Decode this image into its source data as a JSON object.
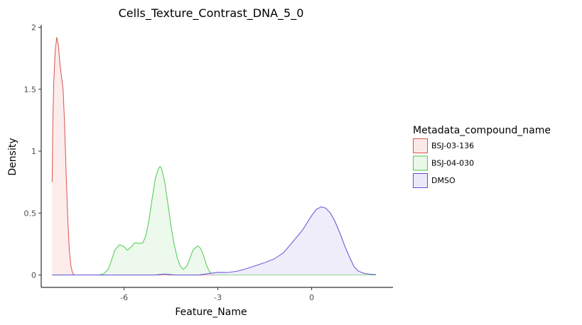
{
  "chart_data": {
    "type": "area",
    "title": "Cells_Texture_Contrast_DNA_5_0",
    "xlabel": "Feature_Name",
    "ylabel": "Density",
    "xlim": [
      -8.65,
      2.6
    ],
    "ylim": [
      -0.1,
      2.02
    ],
    "x_ticks": [
      -6,
      -3,
      0
    ],
    "x_tick_labels": [
      "-6",
      "-3",
      "0"
    ],
    "y_ticks": [
      0,
      0.5,
      1,
      1.5,
      2
    ],
    "y_tick_labels": [
      "0",
      "0.5",
      "1",
      "1.5",
      "2"
    ],
    "grid": false,
    "legend": {
      "title": "Metadata_compound_name",
      "position": "right",
      "entries": [
        "BSJ-03-136",
        "BSJ-04-030",
        "DMSO"
      ]
    },
    "series": [
      {
        "name": "BSJ-03-136",
        "line_color": "#d9534f",
        "fill_color": "#fbe9e8",
        "points": [
          [
            -8.3,
            0.75
          ],
          [
            -8.28,
            1.2
          ],
          [
            -8.25,
            1.55
          ],
          [
            -8.2,
            1.82
          ],
          [
            -8.15,
            1.92
          ],
          [
            -8.1,
            1.85
          ],
          [
            -8.05,
            1.7
          ],
          [
            -8.0,
            1.6
          ],
          [
            -7.95,
            1.5
          ],
          [
            -7.9,
            1.2
          ],
          [
            -7.85,
            0.8
          ],
          [
            -7.8,
            0.45
          ],
          [
            -7.75,
            0.2
          ],
          [
            -7.7,
            0.07
          ],
          [
            -7.65,
            0.02
          ],
          [
            -7.6,
            0.0
          ],
          [
            -7.4,
            0.0
          ],
          [
            2.05,
            0.0
          ]
        ]
      },
      {
        "name": "BSJ-04-030",
        "line_color": "#4ec94e",
        "fill_color": "#eaf8ea",
        "points": [
          [
            -8.3,
            0.0
          ],
          [
            -6.8,
            0.0
          ],
          [
            -6.65,
            0.01
          ],
          [
            -6.5,
            0.05
          ],
          [
            -6.4,
            0.12
          ],
          [
            -6.3,
            0.2
          ],
          [
            -6.15,
            0.245
          ],
          [
            -6.0,
            0.23
          ],
          [
            -5.9,
            0.2
          ],
          [
            -5.8,
            0.22
          ],
          [
            -5.65,
            0.26
          ],
          [
            -5.5,
            0.255
          ],
          [
            -5.4,
            0.26
          ],
          [
            -5.3,
            0.32
          ],
          [
            -5.2,
            0.45
          ],
          [
            -5.1,
            0.62
          ],
          [
            -5.0,
            0.78
          ],
          [
            -4.9,
            0.86
          ],
          [
            -4.85,
            0.875
          ],
          [
            -4.8,
            0.86
          ],
          [
            -4.7,
            0.75
          ],
          [
            -4.6,
            0.58
          ],
          [
            -4.5,
            0.4
          ],
          [
            -4.4,
            0.25
          ],
          [
            -4.3,
            0.14
          ],
          [
            -4.2,
            0.07
          ],
          [
            -4.1,
            0.045
          ],
          [
            -4.0,
            0.07
          ],
          [
            -3.9,
            0.13
          ],
          [
            -3.8,
            0.2
          ],
          [
            -3.65,
            0.235
          ],
          [
            -3.55,
            0.215
          ],
          [
            -3.45,
            0.15
          ],
          [
            -3.35,
            0.07
          ],
          [
            -3.25,
            0.02
          ],
          [
            -3.1,
            0.0
          ],
          [
            2.05,
            0.0
          ]
        ]
      },
      {
        "name": "DMSO",
        "line_color": "#5b52d6",
        "fill_color": "#eceaf9",
        "points": [
          [
            -8.3,
            0.0
          ],
          [
            -5.0,
            0.0
          ],
          [
            -4.7,
            0.008
          ],
          [
            -4.4,
            0.0
          ],
          [
            -3.6,
            0.0
          ],
          [
            -3.3,
            0.012
          ],
          [
            -3.0,
            0.022
          ],
          [
            -2.7,
            0.02
          ],
          [
            -2.4,
            0.03
          ],
          [
            -2.1,
            0.05
          ],
          [
            -1.8,
            0.075
          ],
          [
            -1.5,
            0.1
          ],
          [
            -1.2,
            0.13
          ],
          [
            -0.9,
            0.18
          ],
          [
            -0.7,
            0.24
          ],
          [
            -0.5,
            0.3
          ],
          [
            -0.3,
            0.36
          ],
          [
            -0.15,
            0.42
          ],
          [
            0.0,
            0.48
          ],
          [
            0.15,
            0.53
          ],
          [
            0.3,
            0.55
          ],
          [
            0.45,
            0.54
          ],
          [
            0.6,
            0.5
          ],
          [
            0.75,
            0.43
          ],
          [
            0.9,
            0.34
          ],
          [
            1.05,
            0.24
          ],
          [
            1.2,
            0.15
          ],
          [
            1.35,
            0.07
          ],
          [
            1.5,
            0.03
          ],
          [
            1.7,
            0.012
          ],
          [
            1.9,
            0.006
          ],
          [
            2.05,
            0.004
          ]
        ]
      }
    ]
  }
}
